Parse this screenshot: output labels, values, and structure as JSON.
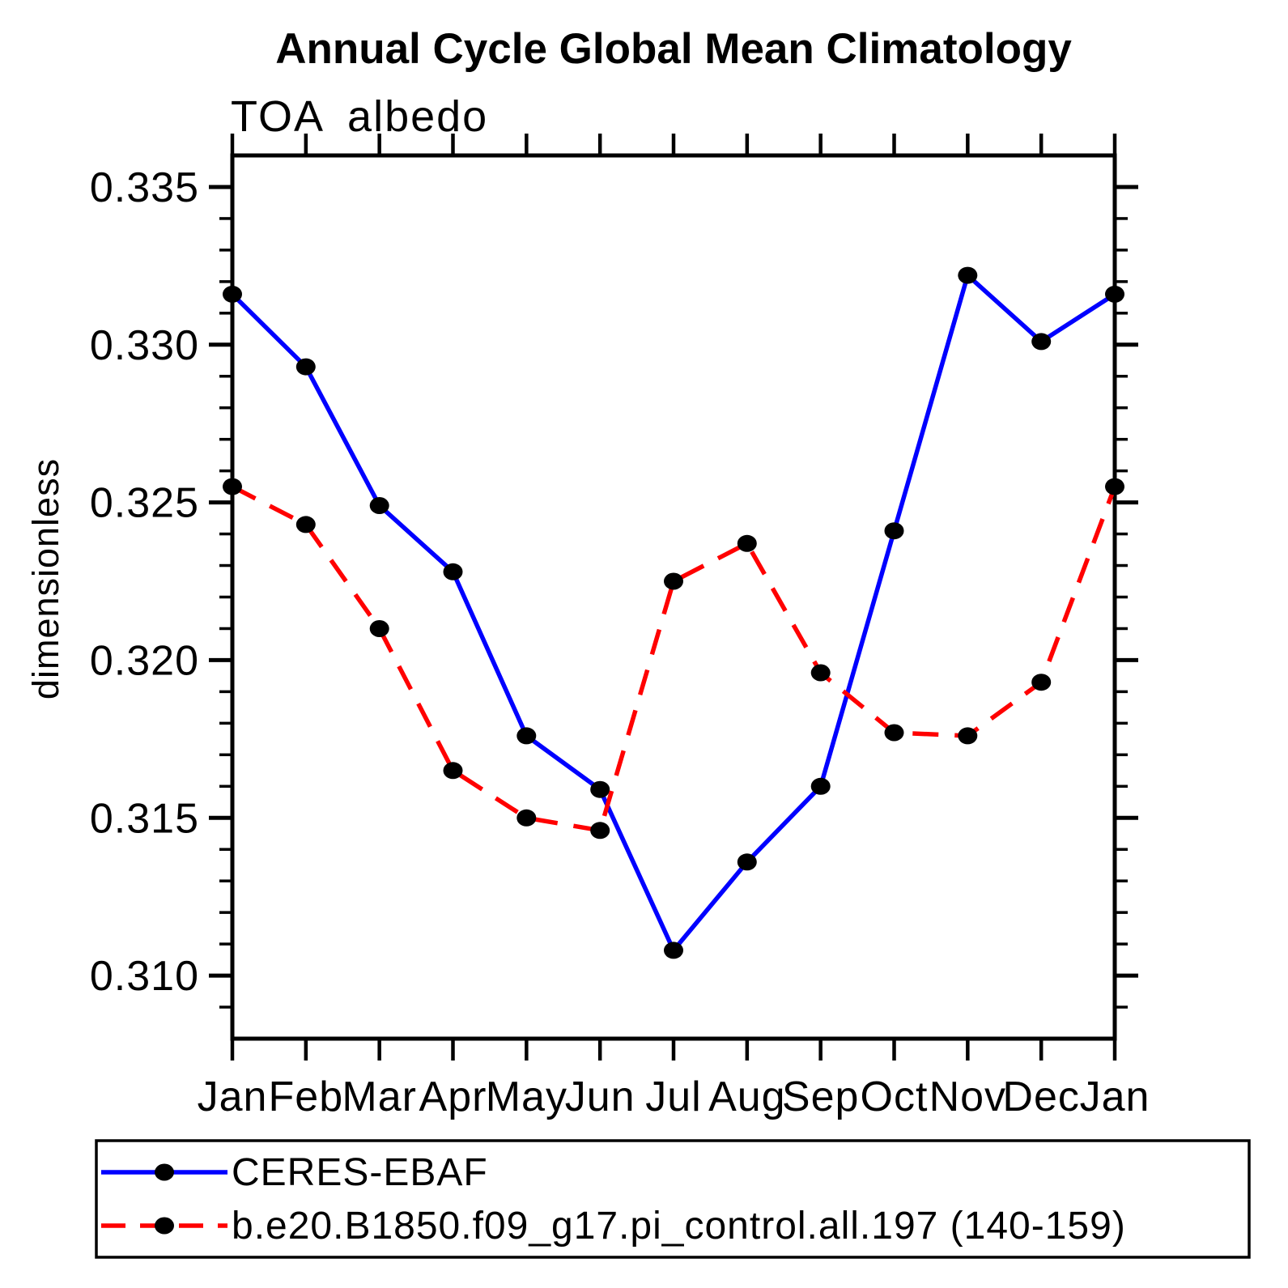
{
  "title": "Annual Cycle Global Mean Climatology",
  "subtitle": "TOA albedo",
  "chart_data": {
    "type": "line",
    "title": "Annual Cycle Global Mean Climatology",
    "subtitle": "TOA albedo",
    "xlabel": "",
    "ylabel": "dimensionless",
    "x_categories": [
      "Jan",
      "Feb",
      "Mar",
      "Apr",
      "May",
      "Jun",
      "Jul",
      "Aug",
      "Sep",
      "Oct",
      "Nov",
      "Dec",
      "Jan"
    ],
    "y_tick_labels": [
      "0.335",
      "0.330",
      "0.325",
      "0.320",
      "0.315",
      "0.310"
    ],
    "y_ticks": [
      0.335,
      0.33,
      0.325,
      0.32,
      0.315,
      0.31
    ],
    "y_minor_step": 0.001,
    "ylim": [
      0.308,
      0.336
    ],
    "grid": false,
    "legend_position": "bottom",
    "series": [
      {
        "name": "CERES-EBAF",
        "color": "#0000ff",
        "line_style": "solid",
        "marker": "filled-circle",
        "marker_color": "#000000",
        "values": [
          0.3316,
          0.3293,
          0.3249,
          0.3228,
          0.3176,
          0.3159,
          0.3108,
          0.3136,
          0.316,
          0.3241,
          0.3322,
          0.3301,
          0.3316
        ]
      },
      {
        "name": "b.e20.B1850.f09_g17.pi_control.all.197 (140-159)",
        "color": "#ff0000",
        "line_style": "dashed",
        "marker": "filled-circle",
        "marker_color": "#000000",
        "values": [
          0.3255,
          0.3243,
          0.321,
          0.3165,
          0.315,
          0.3146,
          0.3225,
          0.3237,
          0.3196,
          0.3177,
          0.3176,
          0.3193,
          0.3255
        ]
      }
    ],
    "colors": {
      "axis": "#000000",
      "text": "#000000",
      "background": "#ffffff"
    }
  }
}
